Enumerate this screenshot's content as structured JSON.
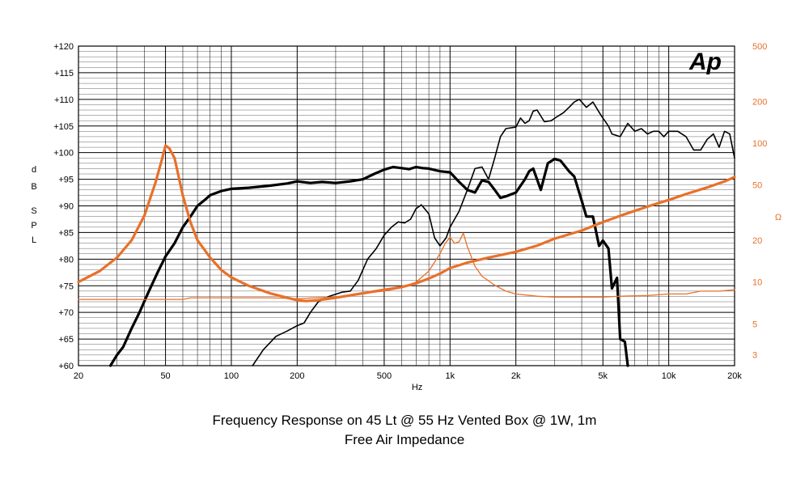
{
  "chart_data": {
    "type": "line",
    "title": "Frequency Response on 45 Lt @ 55 Hz Vented Box @ 1W, 1m",
    "subtitle": "Free Air Impedance",
    "xlabel": "Hz",
    "ylabel_left": [
      "dB",
      "S",
      "P",
      "L"
    ],
    "ylabel_right": "Ω",
    "x_scale": "log",
    "xlim": [
      20,
      20000
    ],
    "ylim_left": [
      60,
      120
    ],
    "ylim_right": [
      2.5,
      500
    ],
    "y_right_scale": "log",
    "x_ticks": [
      {
        "v": 20,
        "label": "20"
      },
      {
        "v": 50,
        "label": "50"
      },
      {
        "v": 100,
        "label": "100"
      },
      {
        "v": 200,
        "label": "200"
      },
      {
        "v": 500,
        "label": "500"
      },
      {
        "v": 1000,
        "label": "1k"
      },
      {
        "v": 2000,
        "label": "2k"
      },
      {
        "v": 5000,
        "label": "5k"
      },
      {
        "v": 10000,
        "label": "10k"
      },
      {
        "v": 20000,
        "label": "20k"
      }
    ],
    "y_ticks_left": [
      {
        "v": 120,
        "label": "+120"
      },
      {
        "v": 115,
        "label": "+115"
      },
      {
        "v": 110,
        "label": "+110"
      },
      {
        "v": 105,
        "label": "+105"
      },
      {
        "v": 100,
        "label": "+100"
      },
      {
        "v": 95,
        "label": "+95"
      },
      {
        "v": 90,
        "label": "+90"
      },
      {
        "v": 85,
        "label": "+85"
      },
      {
        "v": 80,
        "label": "+80"
      },
      {
        "v": 75,
        "label": "+75"
      },
      {
        "v": 70,
        "label": "+70"
      },
      {
        "v": 65,
        "label": "+65"
      },
      {
        "v": 60,
        "label": "+60"
      }
    ],
    "y_ticks_right": [
      {
        "v": 500,
        "label": "500"
      },
      {
        "v": 200,
        "label": "200"
      },
      {
        "v": 100,
        "label": "100"
      },
      {
        "v": 50,
        "label": "50"
      },
      {
        "v": 20,
        "label": "20"
      },
      {
        "v": 10,
        "label": "10"
      },
      {
        "v": 5,
        "label": "5"
      },
      {
        "v": 3,
        "label": "3"
      }
    ],
    "grid": true,
    "series": [
      {
        "axis": "left",
        "color": "#000000",
        "width": 3.2,
        "points": [
          [
            28,
            60
          ],
          [
            30,
            62
          ],
          [
            32,
            63.5
          ],
          [
            35,
            67
          ],
          [
            38,
            70
          ],
          [
            42,
            74
          ],
          [
            46,
            77.5
          ],
          [
            50,
            80.5
          ],
          [
            55,
            83
          ],
          [
            60,
            86
          ],
          [
            65,
            88
          ],
          [
            70,
            90
          ],
          [
            75,
            91
          ],
          [
            80,
            92
          ],
          [
            90,
            92.8
          ],
          [
            100,
            93.2
          ],
          [
            120,
            93.4
          ],
          [
            150,
            93.8
          ],
          [
            180,
            94.2
          ],
          [
            200,
            94.6
          ],
          [
            230,
            94.3
          ],
          [
            260,
            94.5
          ],
          [
            300,
            94.3
          ],
          [
            350,
            94.6
          ],
          [
            400,
            95
          ],
          [
            450,
            96
          ],
          [
            500,
            96.8
          ],
          [
            550,
            97.3
          ],
          [
            600,
            97.1
          ],
          [
            650,
            96.9
          ],
          [
            700,
            97.3
          ],
          [
            750,
            97.1
          ],
          [
            800,
            97
          ],
          [
            900,
            96.5
          ],
          [
            1000,
            96.3
          ],
          [
            1100,
            94.5
          ],
          [
            1200,
            93
          ],
          [
            1300,
            92.5
          ],
          [
            1400,
            94.8
          ],
          [
            1500,
            94.5
          ],
          [
            1600,
            93
          ],
          [
            1700,
            91.5
          ],
          [
            1800,
            91.8
          ],
          [
            2000,
            92.5
          ],
          [
            2200,
            95
          ],
          [
            2300,
            96.5
          ],
          [
            2400,
            97
          ],
          [
            2600,
            93
          ],
          [
            2800,
            98
          ],
          [
            3000,
            98.8
          ],
          [
            3200,
            98.5
          ],
          [
            3500,
            96.5
          ],
          [
            3700,
            95.5
          ],
          [
            4000,
            91
          ],
          [
            4200,
            88
          ],
          [
            4500,
            88
          ],
          [
            4800,
            82.5
          ],
          [
            5000,
            83.5
          ],
          [
            5300,
            82
          ],
          [
            5500,
            74.5
          ],
          [
            5800,
            76.5
          ],
          [
            6000,
            65
          ],
          [
            6300,
            64.5
          ],
          [
            6500,
            60
          ]
        ]
      },
      {
        "axis": "left",
        "color": "#000000",
        "width": 1.6,
        "points": [
          [
            125,
            60
          ],
          [
            140,
            63
          ],
          [
            160,
            65.5
          ],
          [
            180,
            66.5
          ],
          [
            200,
            67.5
          ],
          [
            215,
            68
          ],
          [
            230,
            70
          ],
          [
            250,
            72
          ],
          [
            280,
            73
          ],
          [
            320,
            73.8
          ],
          [
            350,
            74
          ],
          [
            380,
            76
          ],
          [
            420,
            80
          ],
          [
            460,
            82
          ],
          [
            500,
            84.5
          ],
          [
            540,
            86
          ],
          [
            580,
            87
          ],
          [
            620,
            86.8
          ],
          [
            660,
            87.5
          ],
          [
            700,
            89.5
          ],
          [
            740,
            90.2
          ],
          [
            800,
            88.5
          ],
          [
            850,
            84
          ],
          [
            900,
            82.5
          ],
          [
            960,
            84
          ],
          [
            1000,
            86
          ],
          [
            1100,
            89
          ],
          [
            1200,
            93
          ],
          [
            1300,
            97
          ],
          [
            1400,
            97.3
          ],
          [
            1500,
            95
          ],
          [
            1600,
            99
          ],
          [
            1700,
            103
          ],
          [
            1800,
            104.5
          ],
          [
            2000,
            104.8
          ],
          [
            2100,
            106.5
          ],
          [
            2200,
            105.5
          ],
          [
            2300,
            106
          ],
          [
            2400,
            107.8
          ],
          [
            2500,
            108
          ],
          [
            2700,
            105.8
          ],
          [
            2900,
            106
          ],
          [
            3100,
            106.8
          ],
          [
            3300,
            107.5
          ],
          [
            3500,
            108.5
          ],
          [
            3700,
            109.5
          ],
          [
            3900,
            110
          ],
          [
            4200,
            108.5
          ],
          [
            4500,
            109.5
          ],
          [
            4900,
            107
          ],
          [
            5300,
            105
          ],
          [
            5500,
            103.5
          ],
          [
            6000,
            103
          ],
          [
            6500,
            105.5
          ],
          [
            7000,
            104
          ],
          [
            7500,
            104.5
          ],
          [
            8000,
            103.5
          ],
          [
            8500,
            104
          ],
          [
            9000,
            104
          ],
          [
            9500,
            103
          ],
          [
            10000,
            104
          ],
          [
            11000,
            104
          ],
          [
            12000,
            103
          ],
          [
            13000,
            100.5
          ],
          [
            14000,
            100.5
          ],
          [
            15000,
            102.5
          ],
          [
            16000,
            103.5
          ],
          [
            17000,
            101
          ],
          [
            18000,
            104
          ],
          [
            19000,
            103.5
          ],
          [
            20000,
            99
          ]
        ]
      },
      {
        "axis": "right",
        "color": "#e8702a",
        "width": 3.2,
        "points": [
          [
            20,
            10
          ],
          [
            25,
            12
          ],
          [
            30,
            15
          ],
          [
            35,
            20
          ],
          [
            40,
            30
          ],
          [
            45,
            52
          ],
          [
            48,
            75
          ],
          [
            50,
            96
          ],
          [
            52,
            92
          ],
          [
            55,
            78
          ],
          [
            60,
            42
          ],
          [
            65,
            27
          ],
          [
            70,
            20
          ],
          [
            80,
            15
          ],
          [
            90,
            12.2
          ],
          [
            100,
            10.8
          ],
          [
            120,
            9.4
          ],
          [
            150,
            8.3
          ],
          [
            180,
            7.7
          ],
          [
            200,
            7.4
          ],
          [
            220,
            7.3
          ],
          [
            250,
            7.4
          ],
          [
            300,
            7.7
          ],
          [
            400,
            8.3
          ],
          [
            500,
            8.8
          ],
          [
            600,
            9.2
          ],
          [
            700,
            9.8
          ],
          [
            800,
            10.6
          ],
          [
            900,
            11.5
          ],
          [
            1000,
            12.6
          ],
          [
            1200,
            13.8
          ],
          [
            1500,
            15
          ],
          [
            2000,
            16.5
          ],
          [
            2500,
            18.3
          ],
          [
            3000,
            20.5
          ],
          [
            4000,
            23.5
          ],
          [
            5000,
            27
          ],
          [
            6000,
            30
          ],
          [
            8000,
            35
          ],
          [
            10000,
            39
          ],
          [
            12000,
            43
          ],
          [
            15000,
            48
          ],
          [
            18000,
            53
          ],
          [
            20000,
            57
          ]
        ]
      },
      {
        "axis": "right",
        "color": "#e8702a",
        "width": 1.3,
        "points": [
          [
            20,
            7.5
          ],
          [
            30,
            7.5
          ],
          [
            50,
            7.5
          ],
          [
            60,
            7.5
          ],
          [
            65,
            7.7
          ],
          [
            100,
            7.7
          ],
          [
            150,
            7.7
          ],
          [
            200,
            7.6
          ],
          [
            300,
            7.8
          ],
          [
            400,
            8.3
          ],
          [
            500,
            8.6
          ],
          [
            600,
            9.1
          ],
          [
            700,
            10
          ],
          [
            800,
            12
          ],
          [
            900,
            16
          ],
          [
            950,
            19
          ],
          [
            1000,
            21
          ],
          [
            1050,
            19
          ],
          [
            1100,
            19.5
          ],
          [
            1150,
            22.5
          ],
          [
            1200,
            18
          ],
          [
            1300,
            13
          ],
          [
            1400,
            11
          ],
          [
            1600,
            9.5
          ],
          [
            1800,
            8.6
          ],
          [
            2000,
            8.2
          ],
          [
            2500,
            7.9
          ],
          [
            3000,
            7.8
          ],
          [
            4000,
            7.8
          ],
          [
            5000,
            7.8
          ],
          [
            6000,
            7.9
          ],
          [
            8000,
            8
          ],
          [
            10000,
            8.2
          ],
          [
            12000,
            8.2
          ],
          [
            14000,
            8.6
          ],
          [
            17000,
            8.6
          ],
          [
            20000,
            8.8
          ]
        ]
      }
    ]
  },
  "logo_text": "Ap"
}
